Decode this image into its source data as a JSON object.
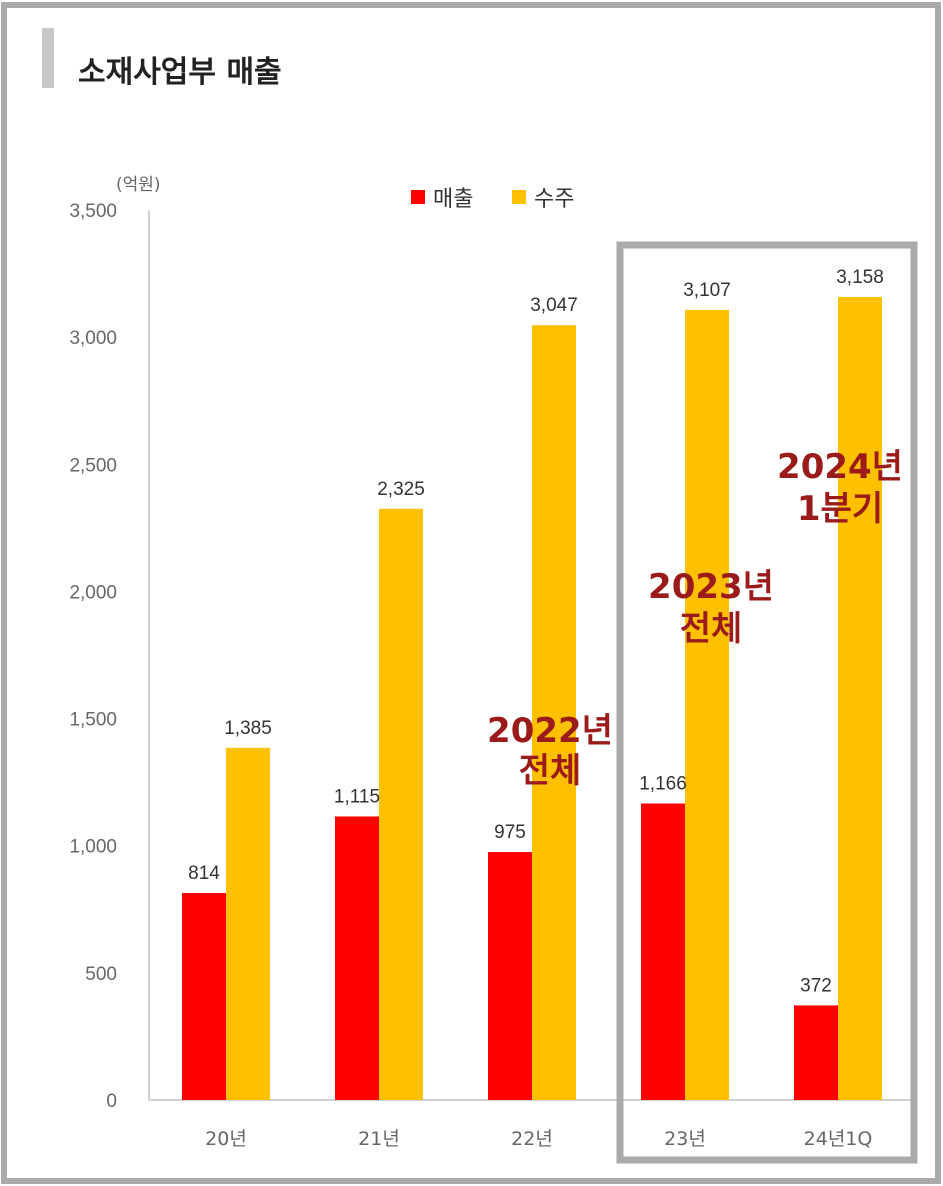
{
  "title": "소재사업부 매출",
  "colors": {
    "sales": "#ff0000",
    "orders": "#ffc000",
    "frame": "#aaaaaa",
    "annotation": "#9b1b1b"
  },
  "chart_data": {
    "type": "bar",
    "unit_label": "(억원)",
    "categories": [
      "20년",
      "21년",
      "22년",
      "23년",
      "24년1Q"
    ],
    "series": [
      {
        "name": "매출",
        "values": [
          814,
          1115,
          975,
          1166,
          372
        ]
      },
      {
        "name": "수주",
        "values": [
          1385,
          2325,
          3047,
          3107,
          3158
        ]
      }
    ],
    "value_labels": {
      "매출": [
        "814",
        "1,115",
        "975",
        "1,166",
        "372"
      ],
      "수주": [
        "1,385",
        "2,325",
        "3,047",
        "3,107",
        "3,158"
      ]
    },
    "ylim": [
      0,
      3500
    ],
    "y_ticks": [
      0,
      500,
      1000,
      1500,
      2000,
      2500,
      3000,
      3500
    ],
    "y_tick_labels": [
      "0",
      "500",
      "1,000",
      "1,500",
      "2,000",
      "2,500",
      "3,000",
      "3,500"
    ],
    "legend_position": "top-center",
    "grid": false,
    "annotations": [
      {
        "lines": [
          "2022년",
          "전체"
        ]
      },
      {
        "lines": [
          "2023년",
          "전체"
        ]
      },
      {
        "lines": [
          "2024년",
          "1분기"
        ]
      }
    ]
  }
}
